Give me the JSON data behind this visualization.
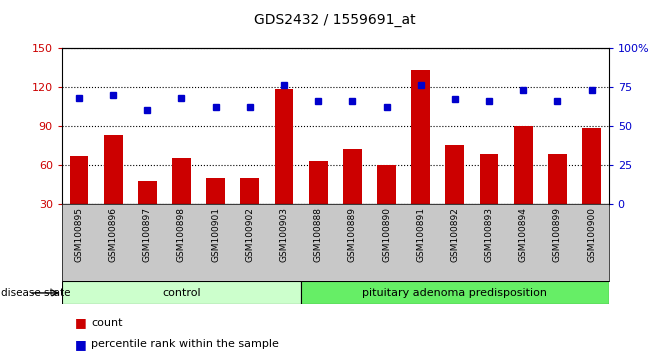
{
  "title": "GDS2432 / 1559691_at",
  "samples": [
    "GSM100895",
    "GSM100896",
    "GSM100897",
    "GSM100898",
    "GSM100901",
    "GSM100902",
    "GSM100903",
    "GSM100888",
    "GSM100889",
    "GSM100890",
    "GSM100891",
    "GSM100892",
    "GSM100893",
    "GSM100894",
    "GSM100899",
    "GSM100900"
  ],
  "counts": [
    67,
    83,
    47,
    65,
    50,
    50,
    118,
    63,
    72,
    60,
    133,
    75,
    68,
    90,
    68,
    88
  ],
  "percentiles": [
    68,
    70,
    60,
    68,
    62,
    62,
    76,
    66,
    66,
    62,
    76,
    67,
    66,
    73,
    66,
    73
  ],
  "group1_label": "control",
  "group1_count": 7,
  "group2_label": "pituitary adenoma predisposition",
  "group2_count": 9,
  "ylim_left": [
    30,
    150
  ],
  "ylim_right": [
    0,
    100
  ],
  "yticks_left": [
    30,
    60,
    90,
    120,
    150
  ],
  "yticks_right": [
    0,
    25,
    50,
    75,
    100
  ],
  "ytick_labels_right": [
    "0",
    "25",
    "50",
    "75",
    "100%"
  ],
  "bar_color": "#cc0000",
  "dot_color": "#0000cc",
  "bg_color": "#ffffff",
  "tick_area_color": "#c8c8c8",
  "group1_color": "#ccffcc",
  "group2_color": "#66ee66",
  "legend_count_label": "count",
  "legend_pct_label": "percentile rank within the sample"
}
